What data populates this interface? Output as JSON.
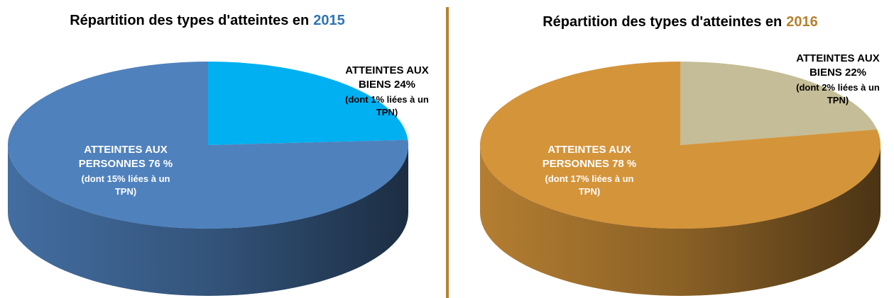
{
  "chart_data": [
    {
      "type": "pie3d",
      "title": "Répartition des types d'atteintes en",
      "title_highlight": "2015",
      "title_highlight_color": "#2e75b6",
      "categories": [
        "ATTEINTES AUX BIENS",
        "ATTEINTES AUX PERSONNES"
      ],
      "values": [
        24,
        76
      ],
      "value_labels": [
        "24%",
        "76 %"
      ],
      "notes": [
        "(dont 1% liées à un TPN)",
        "(dont 15% liées à un TPN)"
      ],
      "colors": [
        "#00b0f0",
        "#4f81bd"
      ],
      "label_colors": [
        "#000000",
        "#ffffff"
      ]
    },
    {
      "type": "pie3d",
      "title": "Répartition des types d'atteintes en",
      "title_highlight": "2016",
      "title_highlight_color": "#b8812f",
      "categories": [
        "ATTEINTES AUX BIENS",
        "ATTEINTES AUX PERSONNES"
      ],
      "values": [
        22,
        78
      ],
      "value_labels": [
        "22%",
        "78 %"
      ],
      "notes": [
        "(dont 2% liées à un TPN)",
        "(dont  17% liées à un TPN)"
      ],
      "colors": [
        "#c4bd97",
        "#d4943a"
      ],
      "label_colors": [
        "#000000",
        "#ffffff"
      ]
    }
  ]
}
